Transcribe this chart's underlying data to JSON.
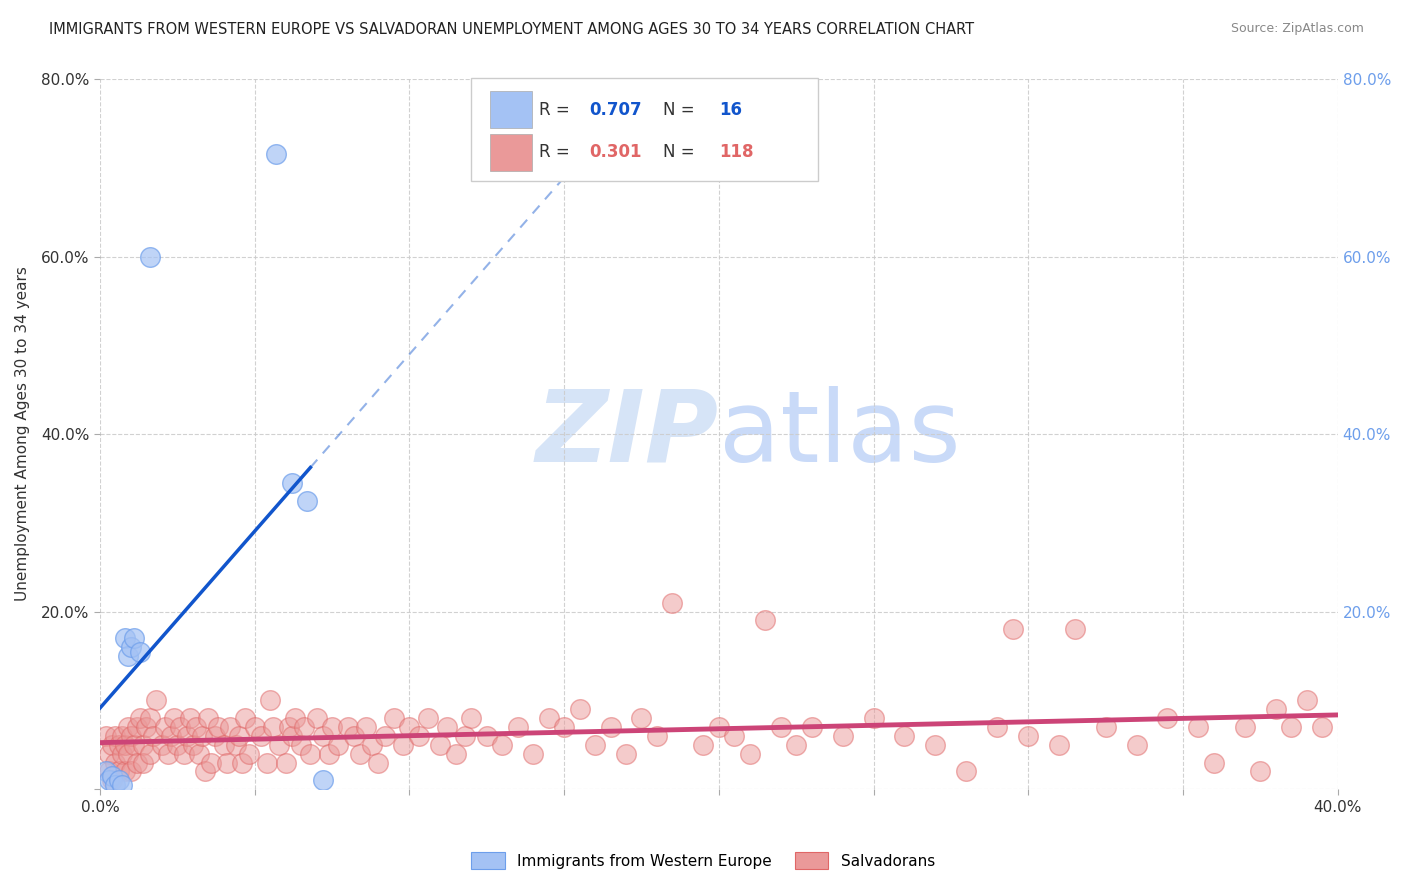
{
  "title": "IMMIGRANTS FROM WESTERN EUROPE VS SALVADORAN UNEMPLOYMENT AMONG AGES 30 TO 34 YEARS CORRELATION CHART",
  "source": "Source: ZipAtlas.com",
  "ylabel": "Unemployment Among Ages 30 to 34 years",
  "xlim": [
    0.0,
    0.4
  ],
  "ylim": [
    0.0,
    0.8
  ],
  "xtick_positions": [
    0.0,
    0.05,
    0.1,
    0.15,
    0.2,
    0.25,
    0.3,
    0.35,
    0.4
  ],
  "xtick_labels": [
    "0.0%",
    "",
    "",
    "",
    "",
    "",
    "",
    "",
    "40.0%"
  ],
  "ytick_positions": [
    0.0,
    0.2,
    0.4,
    0.6,
    0.8
  ],
  "ytick_labels": [
    "",
    "20.0%",
    "40.0%",
    "60.0%",
    "80.0%"
  ],
  "blue_scatter": [
    [
      0.002,
      0.02
    ],
    [
      0.003,
      0.01
    ],
    [
      0.004,
      0.015
    ],
    [
      0.005,
      0.005
    ],
    [
      0.006,
      0.01
    ],
    [
      0.007,
      0.005
    ],
    [
      0.008,
      0.17
    ],
    [
      0.009,
      0.15
    ],
    [
      0.01,
      0.16
    ],
    [
      0.011,
      0.17
    ],
    [
      0.013,
      0.155
    ],
    [
      0.016,
      0.6
    ],
    [
      0.057,
      0.715
    ],
    [
      0.062,
      0.345
    ],
    [
      0.067,
      0.325
    ],
    [
      0.072,
      0.01
    ]
  ],
  "pink_scatter": [
    [
      0.002,
      0.06
    ],
    [
      0.003,
      0.04
    ],
    [
      0.003,
      0.02
    ],
    [
      0.004,
      0.05
    ],
    [
      0.004,
      0.01
    ],
    [
      0.005,
      0.06
    ],
    [
      0.005,
      0.03
    ],
    [
      0.006,
      0.05
    ],
    [
      0.006,
      0.02
    ],
    [
      0.007,
      0.06
    ],
    [
      0.007,
      0.04
    ],
    [
      0.008,
      0.02
    ],
    [
      0.008,
      0.05
    ],
    [
      0.009,
      0.07
    ],
    [
      0.009,
      0.04
    ],
    [
      0.01,
      0.02
    ],
    [
      0.01,
      0.06
    ],
    [
      0.011,
      0.05
    ],
    [
      0.012,
      0.07
    ],
    [
      0.012,
      0.03
    ],
    [
      0.013,
      0.08
    ],
    [
      0.014,
      0.05
    ],
    [
      0.014,
      0.03
    ],
    [
      0.015,
      0.07
    ],
    [
      0.016,
      0.04
    ],
    [
      0.016,
      0.08
    ],
    [
      0.017,
      0.06
    ],
    [
      0.018,
      0.1
    ],
    [
      0.02,
      0.05
    ],
    [
      0.021,
      0.07
    ],
    [
      0.022,
      0.04
    ],
    [
      0.023,
      0.06
    ],
    [
      0.024,
      0.08
    ],
    [
      0.025,
      0.05
    ],
    [
      0.026,
      0.07
    ],
    [
      0.027,
      0.04
    ],
    [
      0.028,
      0.06
    ],
    [
      0.029,
      0.08
    ],
    [
      0.03,
      0.05
    ],
    [
      0.031,
      0.07
    ],
    [
      0.032,
      0.04
    ],
    [
      0.033,
      0.06
    ],
    [
      0.034,
      0.02
    ],
    [
      0.035,
      0.08
    ],
    [
      0.036,
      0.03
    ],
    [
      0.037,
      0.06
    ],
    [
      0.038,
      0.07
    ],
    [
      0.04,
      0.05
    ],
    [
      0.041,
      0.03
    ],
    [
      0.042,
      0.07
    ],
    [
      0.044,
      0.05
    ],
    [
      0.045,
      0.06
    ],
    [
      0.046,
      0.03
    ],
    [
      0.047,
      0.08
    ],
    [
      0.048,
      0.04
    ],
    [
      0.05,
      0.07
    ],
    [
      0.052,
      0.06
    ],
    [
      0.054,
      0.03
    ],
    [
      0.055,
      0.1
    ],
    [
      0.056,
      0.07
    ],
    [
      0.058,
      0.05
    ],
    [
      0.06,
      0.03
    ],
    [
      0.061,
      0.07
    ],
    [
      0.062,
      0.06
    ],
    [
      0.063,
      0.08
    ],
    [
      0.065,
      0.05
    ],
    [
      0.066,
      0.07
    ],
    [
      0.068,
      0.04
    ],
    [
      0.07,
      0.08
    ],
    [
      0.072,
      0.06
    ],
    [
      0.074,
      0.04
    ],
    [
      0.075,
      0.07
    ],
    [
      0.077,
      0.05
    ],
    [
      0.08,
      0.07
    ],
    [
      0.082,
      0.06
    ],
    [
      0.084,
      0.04
    ],
    [
      0.086,
      0.07
    ],
    [
      0.088,
      0.05
    ],
    [
      0.09,
      0.03
    ],
    [
      0.092,
      0.06
    ],
    [
      0.095,
      0.08
    ],
    [
      0.098,
      0.05
    ],
    [
      0.1,
      0.07
    ],
    [
      0.103,
      0.06
    ],
    [
      0.106,
      0.08
    ],
    [
      0.11,
      0.05
    ],
    [
      0.112,
      0.07
    ],
    [
      0.115,
      0.04
    ],
    [
      0.118,
      0.06
    ],
    [
      0.12,
      0.08
    ],
    [
      0.125,
      0.06
    ],
    [
      0.13,
      0.05
    ],
    [
      0.135,
      0.07
    ],
    [
      0.14,
      0.04
    ],
    [
      0.145,
      0.08
    ],
    [
      0.15,
      0.07
    ],
    [
      0.155,
      0.09
    ],
    [
      0.16,
      0.05
    ],
    [
      0.165,
      0.07
    ],
    [
      0.17,
      0.04
    ],
    [
      0.175,
      0.08
    ],
    [
      0.18,
      0.06
    ],
    [
      0.185,
      0.21
    ],
    [
      0.195,
      0.05
    ],
    [
      0.2,
      0.07
    ],
    [
      0.205,
      0.06
    ],
    [
      0.21,
      0.04
    ],
    [
      0.215,
      0.19
    ],
    [
      0.22,
      0.07
    ],
    [
      0.225,
      0.05
    ],
    [
      0.23,
      0.07
    ],
    [
      0.24,
      0.06
    ],
    [
      0.25,
      0.08
    ],
    [
      0.26,
      0.06
    ],
    [
      0.27,
      0.05
    ],
    [
      0.28,
      0.02
    ],
    [
      0.29,
      0.07
    ],
    [
      0.295,
      0.18
    ],
    [
      0.3,
      0.06
    ],
    [
      0.31,
      0.05
    ],
    [
      0.315,
      0.18
    ],
    [
      0.325,
      0.07
    ],
    [
      0.335,
      0.05
    ],
    [
      0.345,
      0.08
    ],
    [
      0.355,
      0.07
    ],
    [
      0.36,
      0.03
    ],
    [
      0.37,
      0.07
    ],
    [
      0.375,
      0.02
    ],
    [
      0.38,
      0.09
    ],
    [
      0.385,
      0.07
    ],
    [
      0.39,
      0.1
    ],
    [
      0.395,
      0.07
    ]
  ],
  "blue_color": "#a4c2f4",
  "blue_edge_color": "#6d9eeb",
  "pink_color": "#ea9999",
  "pink_edge_color": "#e06666",
  "blue_line_color": "#1155cc",
  "pink_line_color": "#cc4477",
  "watermark_color": "#d6e4f7",
  "background_color": "#ffffff",
  "grid_color": "#cccccc",
  "right_tick_color": "#6d9eeb"
}
